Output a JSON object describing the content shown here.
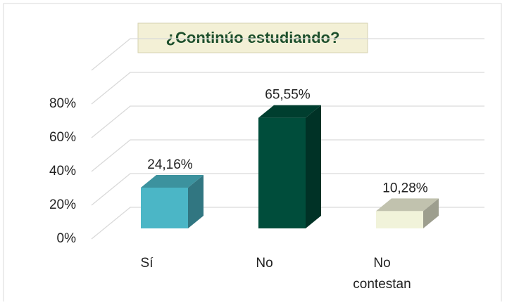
{
  "chart_data": {
    "type": "bar3d",
    "title": "¿Continúo estudiando?",
    "categories": [
      "Sí",
      "No",
      "No contestan"
    ],
    "values": [
      24.16,
      65.55,
      10.28
    ],
    "value_labels": [
      "24,16%",
      "65,55%",
      "10,28%"
    ],
    "colors": [
      "#4bb6c6",
      "#004d3b",
      "#f1f3da"
    ],
    "ylim": [
      0,
      100
    ],
    "yticks": [
      {
        "value": 0,
        "label": "0%"
      },
      {
        "value": 20,
        "label": "20%"
      },
      {
        "value": 40,
        "label": "40%"
      },
      {
        "value": 60,
        "label": "60%"
      },
      {
        "value": 80,
        "label": "80%"
      }
    ],
    "grid": true
  }
}
